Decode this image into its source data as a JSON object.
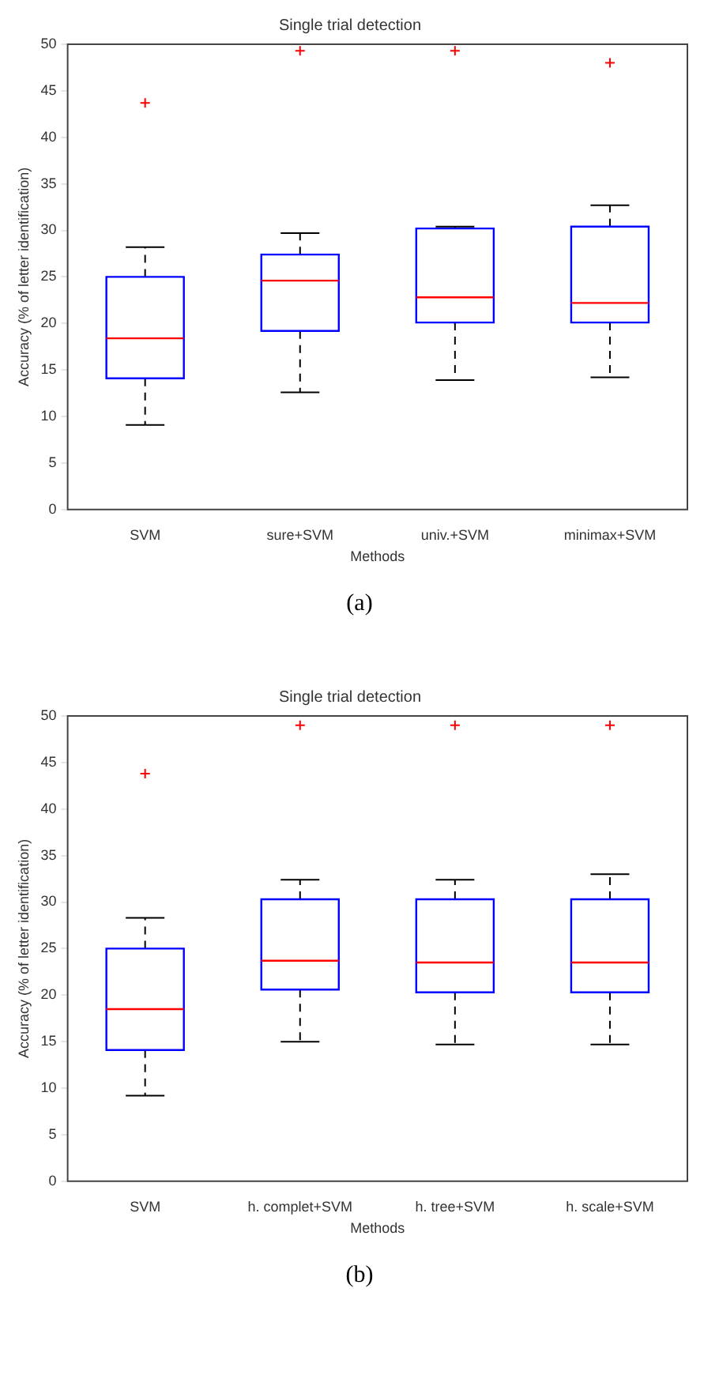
{
  "chart_data": [
    {
      "type": "box",
      "title": "Single trial detection",
      "xlabel": "Methods",
      "ylabel": "Accuracy (% of letter identification)",
      "categories": [
        "SVM",
        "sure+SVM",
        "univ.+SVM",
        "minimax+SVM"
      ],
      "color": "#0000ff",
      "ylim": [
        0,
        50
      ],
      "yticks": [
        0,
        5,
        10,
        15,
        20,
        25,
        30,
        35,
        40,
        45,
        50
      ],
      "annotations": [
        "(a)"
      ],
      "boxes": [
        {
          "low": 9.1,
          "q1": 14.1,
          "median": 18.4,
          "q3": 25,
          "high": 28.2,
          "outliers": [
            43.7
          ]
        },
        {
          "low": 12.6,
          "q1": 19.2,
          "median": 24.6,
          "q3": 27.4,
          "high": 29.7,
          "outliers": [
            49.3
          ]
        },
        {
          "low": 13.9,
          "q1": 20.1,
          "median": 22.8,
          "q3": 30.2,
          "high": 30.4,
          "outliers": [
            49.3
          ]
        },
        {
          "low": 14.2,
          "q1": 20.1,
          "median": 22.2,
          "q3": 30.4,
          "high": 32.7,
          "outliers": [
            48
          ]
        }
      ]
    },
    {
      "type": "box",
      "title": "Single trial detection",
      "xlabel": "Methods",
      "ylabel": "Accuracy (% of letter identification)",
      "categories": [
        "SVM",
        "h. complet+SVM",
        "h. tree+SVM",
        "h. scale+SVM"
      ],
      "color": "#0000ff",
      "ylim": [
        0,
        50
      ],
      "yticks": [
        0,
        5,
        10,
        15,
        20,
        25,
        30,
        35,
        40,
        45,
        50
      ],
      "annotations": [
        "(b)"
      ],
      "boxes": [
        {
          "low": 9.2,
          "q1": 14.1,
          "median": 18.5,
          "q3": 25,
          "high": 28.3,
          "outliers": [
            43.8
          ]
        },
        {
          "low": 15,
          "q1": 20.6,
          "median": 23.7,
          "q3": 30.3,
          "high": 32.4,
          "outliers": [
            49
          ]
        },
        {
          "low": 14.7,
          "q1": 20.3,
          "median": 23.5,
          "q3": 30.3,
          "high": 32.4,
          "outliers": [
            49
          ]
        },
        {
          "low": 14.7,
          "q1": 20.3,
          "median": 23.5,
          "q3": 30.3,
          "high": 33,
          "outliers": [
            49
          ]
        }
      ]
    }
  ]
}
